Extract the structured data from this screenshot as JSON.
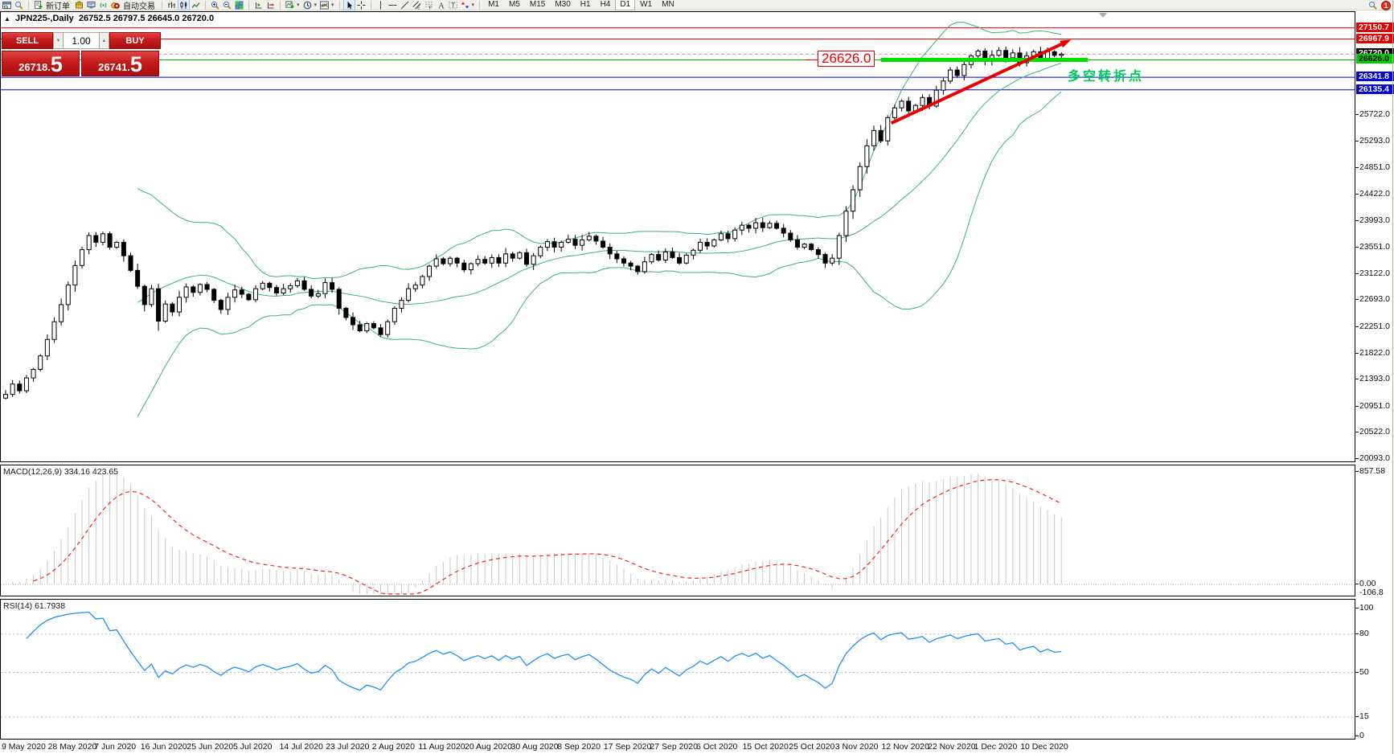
{
  "toolbar": {
    "groups": [
      [
        "window",
        "market-watch"
      ],
      [
        "new-order",
        "history",
        "terminal",
        "signal",
        "autotrading"
      ],
      [
        "bar-chart",
        "candlestick-chart",
        "line-chart"
      ],
      [
        "zoom-in",
        "zoom-out",
        "tile-windows"
      ],
      [
        "auto-scroll",
        "chart-shift"
      ],
      [
        "indicators",
        "periods",
        "templates"
      ],
      [
        "cursor",
        "crosshair"
      ],
      [
        "vline",
        "hline",
        "trendline",
        "channel",
        "fibonacci",
        "text",
        "label",
        "arrows"
      ]
    ],
    "icon_labels": {
      "new-order": "新订单",
      "autotrading": "自动交易"
    },
    "carets": [
      "indicators",
      "periods",
      "templates",
      "arrows"
    ],
    "active_icons": [
      "candlestick-chart",
      "cursor"
    ],
    "timeframes": [
      "M1",
      "M5",
      "M15",
      "M30",
      "H1",
      "H4",
      "D1",
      "W1",
      "MN"
    ],
    "active_timeframe": "D1",
    "notification_count": "1"
  },
  "one_click": {
    "sell_label": "SELL",
    "buy_label": "BUY",
    "volume": "1.00",
    "sell_price_small": "26718.",
    "sell_price_big": "5",
    "buy_price_small": "26741.",
    "buy_price_big": "5"
  },
  "chart": {
    "title_symbol": "JPN225-,Daily",
    "title_ohlc": "26752.5 26797.5 26645.0 26720.0",
    "annotation_price": "26626.0",
    "annotation_cjk": "多空转折点",
    "axis_ticks": [
      25722.0,
      25293.0,
      24851.0,
      24422.0,
      23993.0,
      23551.0,
      23122.0,
      22693.0,
      22251.0,
      21822.0,
      21393.0,
      20951.0,
      20522.0,
      20093.0
    ],
    "price_badges": [
      {
        "text": "27150.7",
        "price": 27150.7,
        "bg": "#e00000",
        "fg": "#ffffff"
      },
      {
        "text": "26967.9",
        "price": 26967.9,
        "bg": "#e00000",
        "fg": "#ffffff"
      },
      {
        "text": "26720.0",
        "price": 26720.0,
        "bg": "#000000",
        "fg": "#ffffff"
      },
      {
        "text": "26626.0",
        "price": 26626.0,
        "bg": "#00d000",
        "fg": "#000000"
      },
      {
        "text": "26341.8",
        "price": 26341.8,
        "bg": "#0000e0",
        "fg": "#ffffff"
      },
      {
        "text": "26135.4",
        "price": 26135.4,
        "bg": "#0000e0",
        "fg": "#ffffff"
      }
    ],
    "levels": [
      {
        "price": 27150.7,
        "color": "#ff0000",
        "dash": "",
        "w": 1
      },
      {
        "price": 26967.9,
        "color": "#ff0000",
        "dash": "",
        "w": 1
      },
      {
        "price": 26720.0,
        "color": "#a8a8a8",
        "dash": "4,3",
        "w": 1
      },
      {
        "price": 26626.0,
        "color": "#00b400",
        "dash": "",
        "w": 1
      },
      {
        "price": 26341.8,
        "color": "#0000ff",
        "dash": "",
        "w": 1
      },
      {
        "price": 26135.4,
        "color": "#0000ff",
        "dash": "",
        "w": 1
      }
    ]
  },
  "macd": {
    "label": "MACD(12,26,9) 334.16 423.65",
    "axis_top": "857.58",
    "axis_zero": "0.00",
    "axis_bottom": "-106.8"
  },
  "rsi": {
    "label": "RSI(14) 61.7938",
    "axis": [
      {
        "v": 100,
        "t": "100"
      },
      {
        "v": 80,
        "t": "80"
      },
      {
        "v": 50,
        "t": "50"
      },
      {
        "v": 15,
        "t": "15"
      },
      {
        "v": 0,
        "t": "0"
      }
    ],
    "levels": [
      80,
      50,
      15
    ]
  },
  "dates": [
    "9 May 2020",
    "28 May 2020",
    "7 Jun 2020",
    "16 Jun 2020",
    "25 Jun 2020",
    "5 Jul 2020",
    "14 Jul 2020",
    "23 Jul 2020",
    "2 Aug 2020",
    "11 Aug 2020",
    "20 Aug 2020",
    "30 Aug 2020",
    "8 Sep 2020",
    "17 Sep 2020",
    "27 Sep 2020",
    "6 Oct 2020",
    "15 Oct 2020",
    "25 Oct 2020",
    "3 Nov 2020",
    "12 Nov 2020",
    "22 Nov 2020",
    "1 Dec 2020",
    "10 Dec 2020"
  ],
  "chart_data": {
    "type": "candlestick",
    "symbol": "JPN225-",
    "period": "Daily",
    "title_ohlc": {
      "open": 26752.5,
      "high": 26797.5,
      "low": 26645.0,
      "close": 26720.0
    },
    "bid": "26718.5",
    "ask": "26741.5",
    "y_axis_range": [
      20027,
      27435
    ],
    "closes": [
      21150,
      21320,
      21210,
      21420,
      21560,
      21780,
      22050,
      22340,
      22620,
      22940,
      23260,
      23520,
      23750,
      23640,
      23780,
      23560,
      23640,
      23420,
      23180,
      22920,
      22620,
      22880,
      22350,
      22630,
      22500,
      22740,
      22910,
      22820,
      22950,
      22870,
      22690,
      22540,
      22740,
      22860,
      22790,
      22700,
      22880,
      22970,
      22900,
      22810,
      22880,
      22930,
      23010,
      22870,
      22760,
      22800,
      22980,
      22870,
      22560,
      22410,
      22290,
      22190,
      22310,
      22240,
      22130,
      22340,
      22560,
      22690,
      22880,
      22940,
      23080,
      23250,
      23370,
      23290,
      23380,
      23300,
      23190,
      23290,
      23360,
      23300,
      23390,
      23300,
      23450,
      23380,
      23470,
      23280,
      23420,
      23560,
      23650,
      23560,
      23640,
      23690,
      23590,
      23680,
      23740,
      23660,
      23560,
      23450,
      23370,
      23300,
      23250,
      23160,
      23320,
      23440,
      23350,
      23480,
      23390,
      23300,
      23430,
      23510,
      23640,
      23580,
      23680,
      23780,
      23700,
      23840,
      23920,
      23870,
      23960,
      23880,
      23950,
      23870,
      23790,
      23680,
      23560,
      23610,
      23520,
      23440,
      23300,
      23380,
      23750,
      24150,
      24500,
      24880,
      25220,
      25470,
      25300,
      25680,
      25840,
      25950,
      25790,
      25880,
      26010,
      25870,
      26130,
      26280,
      26460,
      26370,
      26550,
      26690,
      26770,
      26610,
      26700,
      26780,
      26660,
      26740,
      26580,
      26690,
      26760,
      26640,
      26760,
      26700,
      26720
    ],
    "indicators": {
      "bollinger_period": 20,
      "bollinger_deviation": 2,
      "macd_params": "12,26,9",
      "macd_values": [
        334.16,
        423.65
      ],
      "macd_axis_range": [
        -106.8,
        857.58
      ],
      "rsi_period": 14,
      "rsi_value": 61.7938,
      "rsi_levels": [
        80,
        50,
        15
      ]
    },
    "drawings": {
      "trend_arrow": {
        "from_bar": 127.5,
        "from_price": 25590,
        "to_bar": 152.8,
        "to_price": 26925,
        "color": "#e80000",
        "width": 4
      },
      "support_segment": {
        "from_bar": 126.0,
        "to_bar": 155.8,
        "price": 26626.0,
        "color": "#00e000",
        "width": 5
      },
      "note_price": 26626.0
    }
  }
}
